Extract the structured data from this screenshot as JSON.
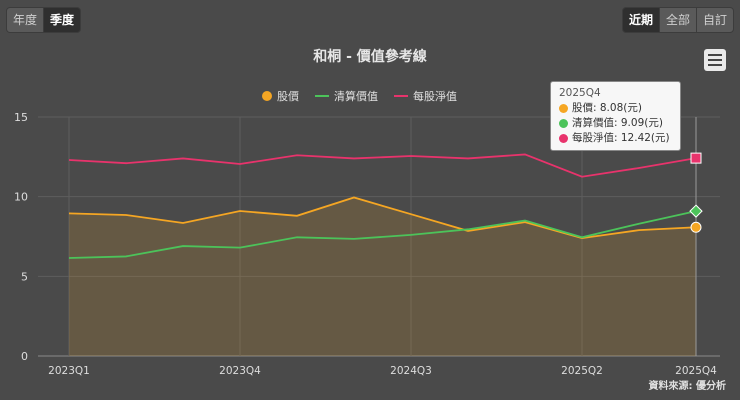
{
  "toolbar": {
    "period_buttons": [
      {
        "label": "年度",
        "active": false
      },
      {
        "label": "季度",
        "active": true
      }
    ],
    "range_buttons": [
      {
        "label": "近期",
        "active": true
      },
      {
        "label": "全部",
        "active": false
      },
      {
        "label": "自訂",
        "active": false
      }
    ]
  },
  "menu_icon": "hamburger-menu-icon",
  "colors": {
    "price": "#f5a623",
    "liquidation": "#4cc35a",
    "bvps": "#e8336c",
    "background": "#4a4a4a"
  },
  "tooltip": {
    "header": "2025Q4",
    "rows": [
      "股價: 8.08(元)",
      "清算價值: 9.09(元)",
      "每股淨值: 12.42(元)"
    ]
  },
  "source": "資料來源: 優分析",
  "chart_data": {
    "type": "line",
    "title": "和桐 - 價值參考線",
    "x": [
      "2023Q1",
      "2023Q2",
      "2023Q3",
      "2023Q4",
      "2024Q1",
      "2024Q2",
      "2024Q3",
      "2024Q4",
      "2025Q1",
      "2025Q2",
      "2025Q3",
      "2025Q4"
    ],
    "x_tick_labels": [
      "2023Q1",
      "2023Q4",
      "2024Q3",
      "2025Q2",
      "2025Q4"
    ],
    "ylim": [
      0,
      15
    ],
    "y_ticks": [
      "0",
      "5",
      "10",
      "15"
    ],
    "grid": true,
    "legend_position": "top-center",
    "series": [
      {
        "name": "股價",
        "style": "area",
        "values": [
          8.95,
          8.85,
          8.35,
          9.1,
          8.8,
          9.95,
          8.9,
          7.85,
          8.4,
          7.4,
          7.9,
          8.08
        ]
      },
      {
        "name": "清算價值",
        "style": "line",
        "values": [
          6.15,
          6.25,
          6.9,
          6.8,
          7.45,
          7.35,
          7.6,
          7.95,
          8.5,
          7.45,
          8.3,
          9.09
        ]
      },
      {
        "name": "每股淨值",
        "style": "line",
        "values": [
          12.3,
          12.1,
          12.4,
          12.05,
          12.6,
          12.4,
          12.55,
          12.4,
          12.65,
          11.25,
          11.8,
          12.42
        ]
      }
    ]
  }
}
